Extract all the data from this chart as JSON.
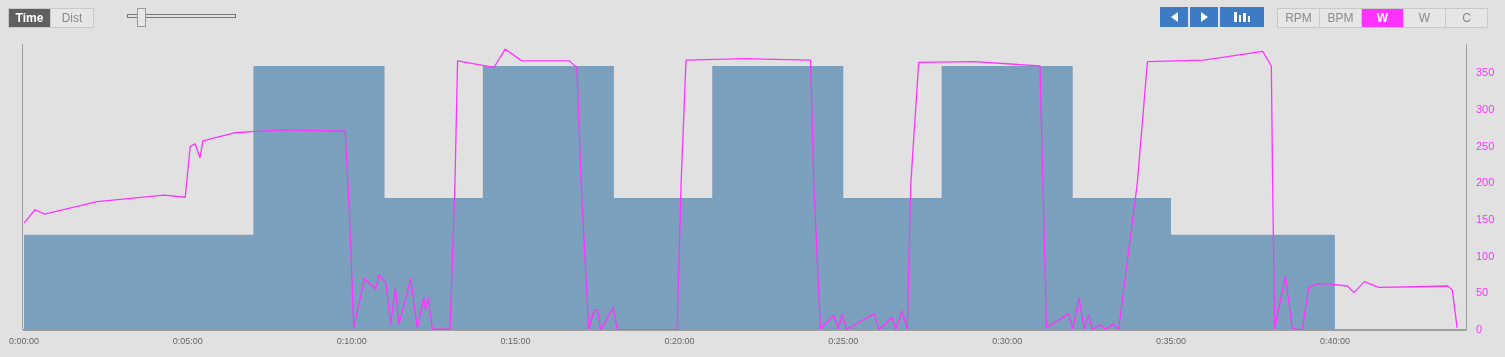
{
  "chart_data": {
    "type": "line",
    "annotations": [
      "Time",
      "Dist",
      "RPM",
      "BPM",
      "W",
      "W",
      "C"
    ],
    "xlim": [
      0,
      44
    ],
    "xticks": [
      {
        "value": 0,
        "label": "0:00:00"
      },
      {
        "value": 5,
        "label": "0:05:00"
      },
      {
        "value": 10,
        "label": "0:10:00"
      },
      {
        "value": 15,
        "label": "0:15:00"
      },
      {
        "value": 20,
        "label": "0:20:00"
      },
      {
        "value": 25,
        "label": "0:25:00"
      },
      {
        "value": 30,
        "label": "0:30:00"
      },
      {
        "value": 35,
        "label": "0:35:00"
      },
      {
        "value": 40,
        "label": "0:40:00"
      }
    ],
    "ylim": [
      0,
      390
    ],
    "yticks": [
      0,
      50,
      100,
      150,
      200,
      250,
      300,
      350
    ],
    "tick_labels": "y_and_x",
    "grid": false,
    "legend": false,
    "marker": "none",
    "line_style": "solid",
    "series": [
      {
        "type": "area",
        "color": "#7ba0bd",
        "x": [
          0,
          7,
          7,
          11,
          11,
          14,
          14,
          18,
          18,
          21,
          21,
          25,
          25,
          28,
          28,
          32,
          32,
          35,
          35,
          40,
          40
        ],
        "values": [
          130,
          130,
          360,
          360,
          180,
          180,
          360,
          360,
          180,
          180,
          360,
          360,
          180,
          180,
          360,
          360,
          180,
          180,
          130,
          130,
          0
        ]
      },
      {
        "type": "line",
        "color": "#ff33ff",
        "x": [
          0,
          0.34,
          0.63,
          2.23,
          4.27,
          4.92,
          5.07,
          5.22,
          5.37,
          5.46,
          6.45,
          7.91,
          9.8,
          9.94,
          10.06,
          10.39,
          10.73,
          10.83,
          11.04,
          11.19,
          11.33,
          11.44,
          11.8,
          12.0,
          12.2,
          12.25,
          12.34,
          12.46,
          13.0,
          13.15,
          13.23,
          14.34,
          14.68,
          15.19,
          16.64,
          16.87,
          17.0,
          17.23,
          17.4,
          17.5,
          17.6,
          17.98,
          18.1,
          19.93,
          20.05,
          20.2,
          22.0,
          24.0,
          24.1,
          24.3,
          24.7,
          24.85,
          24.96,
          25.1,
          25.93,
          26.1,
          26.48,
          26.6,
          26.79,
          26.95,
          27.06,
          27.3,
          29.0,
          31.0,
          31.2,
          31.87,
          32.0,
          32.19,
          32.35,
          32.48,
          32.6,
          32.84,
          33.0,
          33.24,
          33.4,
          33.97,
          34.28,
          36.0,
          37.8,
          38.06,
          38.1,
          38.16,
          38.49,
          38.7,
          39.0,
          39.2,
          39.44,
          39.8,
          40.38,
          40.58,
          40.9,
          41.33,
          42.5,
          43.44,
          43.58,
          43.73
        ],
        "values": [
          146,
          164,
          158,
          175,
          184,
          181,
          250,
          254,
          235,
          258,
          269,
          273,
          271,
          150,
          3,
          70,
          56,
          75,
          64,
          8,
          57,
          8,
          70,
          3,
          44,
          27,
          43,
          1,
          1,
          200,
          367,
          358,
          383,
          367,
          367,
          358,
          200,
          2,
          27,
          28,
          0,
          31,
          0,
          0,
          200,
          368,
          370,
          368,
          200,
          2,
          20,
          2,
          21,
          1,
          22,
          1,
          17,
          1,
          26,
          1,
          200,
          365,
          366,
          360,
          3,
          22,
          2,
          43,
          2,
          20,
          1,
          7,
          1,
          8,
          1,
          200,
          366,
          368,
          380,
          360,
          200,
          2,
          73,
          2,
          0,
          58,
          63,
          63,
          60,
          51,
          66,
          58,
          59,
          60,
          55,
          3
        ]
      }
    ]
  }
}
